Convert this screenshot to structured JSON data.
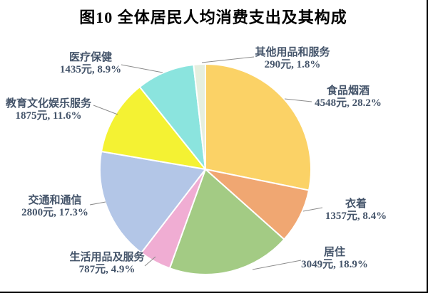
{
  "figure": {
    "title": "图10 全体居民人均消费支出及其构成"
  },
  "chart_data": {
    "type": "pie",
    "title": "图10 全体居民人均消费支出及其构成",
    "unit": "元",
    "start_angle_deg": 0,
    "direction": "clockwise",
    "label_text_color": "#44546A",
    "leader_line_color": "#8C8C8C",
    "slice_border_color": "#FFFFFF",
    "slices": [
      {
        "label": "食品烟酒",
        "value": 4548,
        "pct": 28.2,
        "color": "#FBD266",
        "value_label": "4548元, 28.2%"
      },
      {
        "label": "衣着",
        "value": 1357,
        "pct": 8.4,
        "color": "#F0A772",
        "value_label": "1357元, 8.4%"
      },
      {
        "label": "居住",
        "value": 3049,
        "pct": 18.9,
        "color": "#A3CB84",
        "value_label": "3049元, 18.9%"
      },
      {
        "label": "生活用品及服务",
        "value": 787,
        "pct": 4.9,
        "color": "#F0ADD3",
        "value_label": "787元, 4.9%"
      },
      {
        "label": "交通和通信",
        "value": 2800,
        "pct": 17.3,
        "color": "#B3C6E7",
        "value_label": "2800元, 17.3%"
      },
      {
        "label": "教育文化娱乐服务",
        "value": 1875,
        "pct": 11.6,
        "color": "#F4F233",
        "value_label": "1875元, 11.6%"
      },
      {
        "label": "医疗保健",
        "value": 1435,
        "pct": 8.9,
        "color": "#8BE4DE",
        "value_label": "1435元, 8.9%"
      },
      {
        "label": "其他用品和服务",
        "value": 290,
        "pct": 1.8,
        "color": "#E6EFDF",
        "value_label": "290元, 1.8%"
      }
    ]
  }
}
